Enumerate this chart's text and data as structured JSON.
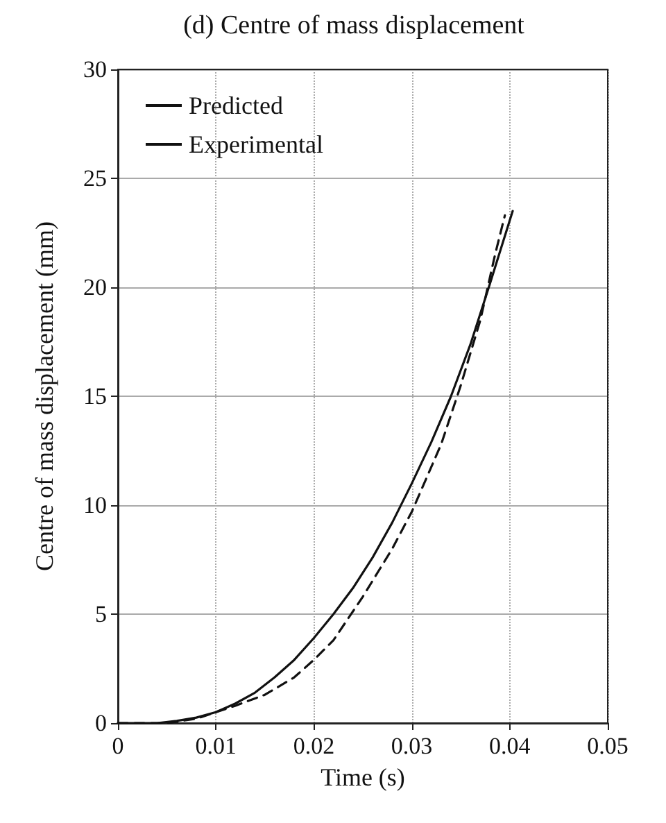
{
  "chart_data": {
    "type": "line",
    "title": "(d) Centre of mass displacement",
    "xlabel": "Time (s)",
    "ylabel": "Centre of mass displacement (mm)",
    "xlim": [
      0,
      0.05
    ],
    "xticks": [
      0,
      0.01,
      0.02,
      0.03,
      0.04,
      0.05
    ],
    "ylim": [
      0,
      30
    ],
    "yticks": [
      0,
      5,
      10,
      15,
      20,
      25,
      30
    ],
    "grid": true,
    "legend": "top left",
    "marker": "none",
    "series": [
      {
        "name": "Predicted",
        "color": "#111111",
        "line_style": "solid",
        "x": [
          0,
          0.004,
          0.006,
          0.008,
          0.01,
          0.012,
          0.014,
          0.016,
          0.018,
          0.02,
          0.022,
          0.024,
          0.026,
          0.028,
          0.03,
          0.032,
          0.034,
          0.036,
          0.038,
          0.0403
        ],
        "values": [
          0,
          0,
          0.1,
          0.25,
          0.5,
          0.9,
          1.4,
          2.1,
          2.9,
          3.9,
          5.0,
          6.2,
          7.6,
          9.2,
          11.0,
          12.9,
          15.0,
          17.4,
          20.2,
          23.5
        ]
      },
      {
        "name": "Experimental",
        "color": "#111111",
        "line_style": "dashed",
        "x": [
          0,
          0.005,
          0.008,
          0.01,
          0.012,
          0.015,
          0.018,
          0.02,
          0.022,
          0.025,
          0.028,
          0.03,
          0.033,
          0.035,
          0.037,
          0.0385,
          0.0395
        ],
        "values": [
          0,
          0,
          0.2,
          0.5,
          0.8,
          1.3,
          2.1,
          2.9,
          3.8,
          5.8,
          8.0,
          9.7,
          12.8,
          15.5,
          18.5,
          21.5,
          23.3
        ]
      }
    ]
  }
}
